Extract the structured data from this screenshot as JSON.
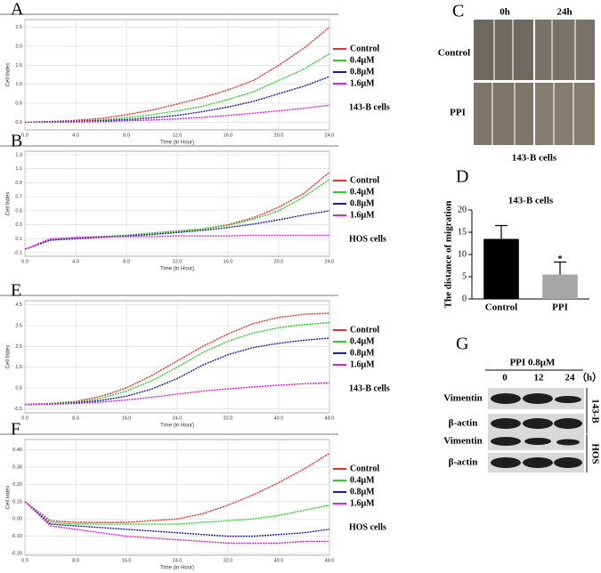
{
  "chart_data": [
    {
      "type": "line",
      "panel": "A",
      "annotation": "143-B cells",
      "xlabel": "Time (in Hour)",
      "ylabel": "Cell Index",
      "x": [
        0,
        2,
        4,
        6,
        8,
        10,
        12,
        14,
        16,
        18,
        20,
        22,
        24
      ],
      "xlim": [
        0,
        24
      ],
      "ylim": [
        -0.2,
        2.7
      ],
      "xticks": [
        {
          "value": 0,
          "label": "0.0"
        },
        {
          "value": 4,
          "label": "4.0"
        },
        {
          "value": 8,
          "label": "8.0"
        },
        {
          "value": 12,
          "label": "12.0"
        },
        {
          "value": 16,
          "label": "16.0"
        },
        {
          "value": 20,
          "label": "20.0"
        },
        {
          "value": 24,
          "label": "24.0"
        }
      ],
      "yticks": [
        {
          "value": 0,
          "label": "0.0"
        },
        0.5,
        {
          "value": 1,
          "label": "1.0"
        },
        1.5,
        {
          "value": 2,
          "label": "2.0"
        },
        2.5
      ],
      "grid": true,
      "series": [
        {
          "name": "Control",
          "color": "#e8302a",
          "values": [
            0,
            0.02,
            0.05,
            0.1,
            0.2,
            0.32,
            0.48,
            0.65,
            0.85,
            1.1,
            1.5,
            1.95,
            2.5
          ]
        },
        {
          "name": "0.4μM",
          "color": "#2ecc2e",
          "values": [
            0,
            0.01,
            0.03,
            0.06,
            0.12,
            0.2,
            0.3,
            0.42,
            0.6,
            0.8,
            1.1,
            1.4,
            1.8
          ]
        },
        {
          "name": "0.8μM",
          "color": "#1a1aa8",
          "values": [
            0,
            0.01,
            0.02,
            0.04,
            0.07,
            0.12,
            0.18,
            0.28,
            0.4,
            0.55,
            0.75,
            0.95,
            1.2
          ]
        },
        {
          "name": "1.6μM",
          "color": "#e020e0",
          "values": [
            0,
            0,
            0.01,
            0.02,
            0.04,
            0.06,
            0.09,
            0.13,
            0.18,
            0.24,
            0.3,
            0.37,
            0.45
          ]
        }
      ]
    },
    {
      "type": "line",
      "panel": "B",
      "annotation": "HOS cells",
      "xlabel": "Time (in Hour)",
      "ylabel": "Cell Index",
      "x": [
        0,
        2,
        4,
        6,
        8,
        10,
        12,
        14,
        16,
        18,
        20,
        22,
        24
      ],
      "xlim": [
        0,
        24
      ],
      "ylim": [
        -0.15,
        1.35
      ],
      "xticks": [
        {
          "value": 0,
          "label": "0.0"
        },
        {
          "value": 4,
          "label": "4.0"
        },
        {
          "value": 8,
          "label": "8.0"
        },
        {
          "value": 12,
          "label": "12.0"
        },
        {
          "value": 16,
          "label": "16.0"
        },
        {
          "value": 20,
          "label": "20.0"
        },
        {
          "value": 24,
          "label": "24.0"
        }
      ],
      "yticks": [
        -0.1,
        0.1,
        0.3,
        0.5,
        0.7,
        0.9,
        1.1,
        1.3
      ],
      "grid": true,
      "series": [
        {
          "name": "Control",
          "color": "#e8302a",
          "values": [
            -0.05,
            0.08,
            0.11,
            0.13,
            0.15,
            0.18,
            0.21,
            0.24,
            0.3,
            0.4,
            0.55,
            0.75,
            1.05
          ]
        },
        {
          "name": "0.4μM",
          "color": "#2ecc2e",
          "values": [
            -0.05,
            0.08,
            0.11,
            0.13,
            0.15,
            0.18,
            0.21,
            0.24,
            0.29,
            0.38,
            0.5,
            0.7,
            0.95
          ]
        },
        {
          "name": "0.8μM",
          "color": "#1a1aa8",
          "values": [
            -0.05,
            0.08,
            0.1,
            0.12,
            0.14,
            0.16,
            0.19,
            0.22,
            0.26,
            0.31,
            0.37,
            0.44,
            0.5
          ]
        },
        {
          "name": "1.6μM",
          "color": "#e020e0",
          "values": [
            -0.05,
            0.1,
            0.12,
            0.13,
            0.13,
            0.13,
            0.14,
            0.14,
            0.14,
            0.15,
            0.15,
            0.15,
            0.15
          ]
        }
      ]
    },
    {
      "type": "line",
      "panel": "E",
      "annotation": "143-B cells",
      "xlabel": "Time (in Hour)",
      "ylabel": "Cell Index",
      "x": [
        0,
        4,
        8,
        12,
        16,
        20,
        24,
        28,
        32,
        36,
        40,
        44,
        48
      ],
      "xlim": [
        0,
        48
      ],
      "ylim": [
        -0.7,
        4.7
      ],
      "xticks": [
        {
          "value": 0,
          "label": "0.0"
        },
        {
          "value": 8,
          "label": "8.0"
        },
        {
          "value": 16,
          "label": "16.0"
        },
        {
          "value": 24,
          "label": "24.0"
        },
        {
          "value": 32,
          "label": "32.0"
        },
        {
          "value": 40,
          "label": "40.0"
        },
        {
          "value": 48,
          "label": "48.0"
        }
      ],
      "yticks": [
        -0.5,
        0.5,
        1.5,
        2.5,
        3.5,
        4.5
      ],
      "grid": true,
      "series": [
        {
          "name": "Control",
          "color": "#e8302a",
          "values": [
            -0.3,
            -0.25,
            -0.15,
            0.1,
            0.5,
            1.1,
            1.8,
            2.5,
            3.1,
            3.6,
            3.9,
            4.05,
            4.1
          ]
        },
        {
          "name": "0.4μM",
          "color": "#2ecc2e",
          "values": [
            -0.3,
            -0.25,
            -0.18,
            0,
            0.35,
            0.85,
            1.5,
            2.2,
            2.75,
            3.15,
            3.4,
            3.55,
            3.65
          ]
        },
        {
          "name": "0.8μM",
          "color": "#1a1aa8",
          "values": [
            -0.3,
            -0.27,
            -0.22,
            -0.1,
            0.1,
            0.45,
            0.95,
            1.6,
            2.1,
            2.45,
            2.65,
            2.8,
            2.9
          ]
        },
        {
          "name": "1.6μM",
          "color": "#e020e0",
          "values": [
            -0.3,
            -0.28,
            -0.25,
            -0.18,
            -0.08,
            0.05,
            0.2,
            0.35,
            0.45,
            0.55,
            0.63,
            0.7,
            0.75
          ]
        }
      ]
    },
    {
      "type": "line",
      "panel": "F",
      "annotation": "HOS cells",
      "xlabel": "Time (in Hour)",
      "ylabel": "Cell Index",
      "x": [
        0,
        4,
        8,
        12,
        16,
        20,
        24,
        28,
        32,
        36,
        40,
        44,
        48
      ],
      "xlim": [
        0,
        48
      ],
      "ylim": [
        -0.21,
        0.46
      ],
      "xticks": [
        {
          "value": 0,
          "label": "0.0"
        },
        {
          "value": 8,
          "label": "8.0"
        },
        {
          "value": 16,
          "label": "16.0"
        },
        {
          "value": 24,
          "label": "24.0"
        },
        {
          "value": 32,
          "label": "32.0"
        },
        {
          "value": 40,
          "label": "40.0"
        },
        {
          "value": 48,
          "label": "48.0"
        }
      ],
      "yticks": [
        {
          "value": -0.2,
          "label": "-0.20"
        },
        {
          "value": -0.1,
          "label": "-0.10"
        },
        {
          "value": 0,
          "label": "0.00"
        },
        {
          "value": 0.1,
          "label": "0.10"
        },
        {
          "value": 0.2,
          "label": "0.20"
        },
        {
          "value": 0.3,
          "label": "0.30"
        },
        {
          "value": 0.4,
          "label": "0.40"
        }
      ],
      "grid": true,
      "series": [
        {
          "name": "Control",
          "color": "#e8302a",
          "values": [
            0.1,
            -0.01,
            -0.02,
            -0.02,
            -0.02,
            -0.01,
            0,
            0.03,
            0.08,
            0.14,
            0.21,
            0.29,
            0.38
          ]
        },
        {
          "name": "0.4μM",
          "color": "#2ecc2e",
          "values": [
            0.1,
            -0.02,
            -0.03,
            -0.03,
            -0.03,
            -0.03,
            -0.03,
            -0.02,
            -0.01,
            0,
            0.02,
            0.05,
            0.08
          ]
        },
        {
          "name": "0.8μM",
          "color": "#1a1aa8",
          "values": [
            0.1,
            -0.03,
            -0.04,
            -0.05,
            -0.06,
            -0.07,
            -0.08,
            -0.09,
            -0.1,
            -0.1,
            -0.09,
            -0.08,
            -0.06
          ]
        },
        {
          "name": "1.6μM",
          "color": "#e020e0",
          "values": [
            0.1,
            -0.04,
            -0.06,
            -0.08,
            -0.1,
            -0.11,
            -0.12,
            -0.13,
            -0.14,
            -0.14,
            -0.14,
            -0.13,
            -0.13
          ]
        }
      ]
    },
    {
      "type": "bar",
      "panel": "D",
      "title": "143-B cells",
      "ylabel": "The distance of migration",
      "categories": [
        "Control",
        "PPI"
      ],
      "values": [
        13.5,
        5.5
      ],
      "errors": [
        3,
        2.8
      ],
      "colors": [
        "#000000",
        "#a6a6a6"
      ],
      "significance": "*",
      "ylim": [
        0,
        20
      ],
      "yticks": [
        0,
        5,
        10,
        15,
        20
      ]
    }
  ],
  "scratch_assay": {
    "panel": "C",
    "columns": [
      "0h",
      "24h"
    ],
    "rows": [
      "Control",
      "PPI"
    ],
    "caption": "143-B cells"
  },
  "western_blot": {
    "panel": "G",
    "treatment": "PPI  0.8μM",
    "timepoints": [
      "0",
      "12",
      "24"
    ],
    "unit": "（h）",
    "rows": [
      "Vimentin",
      "β-actin",
      "Vimentin",
      "β-actin"
    ],
    "groups": [
      "143-B",
      "HOS"
    ]
  }
}
